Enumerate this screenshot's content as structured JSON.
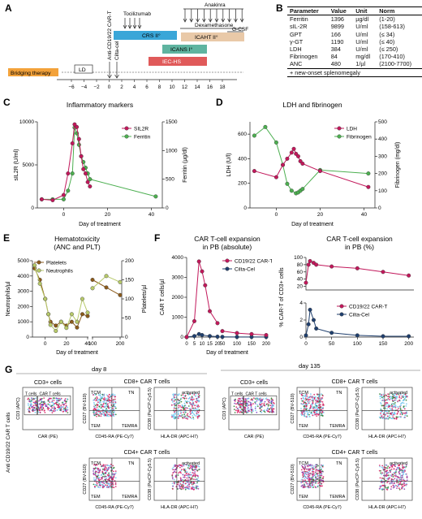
{
  "panels": {
    "A": "A",
    "B": "B",
    "C": "C",
    "D": "D",
    "E": "E",
    "F": "F",
    "G": "G"
  },
  "timeline": {
    "therapies": [
      "Anti-CD19/22 CAR-T",
      "Cilta-cel",
      "Tocilizumab",
      "Dexamethasone",
      "Anakinra",
      "G-CSF"
    ],
    "bars": [
      "Bridging therapy",
      "LD",
      "CRS II°",
      "ICANS I°",
      "ICAHT II°",
      "IEC-HS"
    ],
    "ticks": [
      "−6",
      "−4",
      "−2",
      "0",
      "2",
      "4",
      "6",
      "8",
      "10",
      "12",
      "14",
      "16",
      "18"
    ]
  },
  "table": {
    "headers": [
      "Parameter",
      "Value",
      "Unit",
      "Norm"
    ],
    "rows": [
      [
        "Ferritin",
        "1396",
        "µg/dl",
        "(1-20)"
      ],
      [
        "sIL-2R",
        "9899",
        "U/ml",
        "(158-613)"
      ],
      [
        "GPT",
        "166",
        "U/ml",
        "(≤ 34)"
      ],
      [
        "γ-GT",
        "1190",
        "U/ml",
        "(≤ 40)"
      ],
      [
        "LDH",
        "384",
        "U/ml",
        "(≤ 250)"
      ],
      [
        "Fibrinogen",
        "84",
        "mg/dl",
        "(170-410)"
      ],
      [
        "ANC",
        "480",
        "1/µl",
        "(2100-7700)"
      ]
    ],
    "note": "+ new-onset splenomegaly"
  },
  "panelC": {
    "title": "Inflammatory markers",
    "ylabel_left": "sIL2R (U/ml)",
    "ylabel_right": "Ferritin (µg/dl)",
    "xlabel": "Day of treatment",
    "yticks_left": [
      "0",
      "5000",
      "10000"
    ],
    "yticks_right": [
      "0",
      "500",
      "1000",
      "1500"
    ],
    "xticks": [
      "0",
      "20",
      "40"
    ],
    "legend": [
      "SIL2R",
      "Ferritin"
    ]
  },
  "panelD": {
    "title": "LDH and fibrinogen",
    "ylabel_left": "LDH (U/l)",
    "ylabel_right": "Fibrinogen (mg/dl)",
    "xlabel": "Day of treatment",
    "yticks_left": [
      "0",
      "200",
      "400",
      "600"
    ],
    "yticks_right": [
      "0",
      "100",
      "200",
      "300",
      "400",
      "500"
    ],
    "xticks": [
      "0",
      "20",
      "40"
    ],
    "legend": [
      "LDH",
      "Fibrinogen"
    ]
  },
  "panelE": {
    "title": "Hematotoxicity",
    "subtitle": "(ANC and PLT)",
    "ylabel_left": "Neutrophils/µl",
    "ylabel_right": "Platelets/µl",
    "xlabel": "Day of treatment",
    "yticks_left": [
      "0",
      "1000",
      "2000",
      "3000",
      "4000",
      "5000"
    ],
    "yticks_right": [
      "0",
      "50",
      "100",
      "150",
      "200"
    ],
    "xticks": [
      "0",
      "20",
      "40",
      "100",
      "200"
    ],
    "legend": [
      "Platelets",
      "Neutrophils"
    ]
  },
  "panelF1": {
    "title": "CAR T-cell expansion",
    "subtitle": "in PB (absolute)",
    "ylabel": "CAR T cells/µl",
    "xlabel": "Day of treatment",
    "yticks": [
      "0",
      "1000",
      "2000",
      "3000",
      "4000"
    ],
    "xticks": [
      "0",
      "5",
      "10",
      "15",
      "20",
      "50",
      "100",
      "150",
      "200"
    ],
    "legend": [
      "CD19/22 CAR-T",
      "Cilta-Cel"
    ]
  },
  "panelF2": {
    "title": "CAR T-cell expansion",
    "subtitle": "in PB (%)",
    "ylabel": "% CAR-T of CD3+ cells",
    "yticks_top": [
      "20",
      "40",
      "60",
      "80",
      "100"
    ],
    "yticks_bottom": [
      "0",
      "2",
      "4"
    ],
    "xticks": [
      "0",
      "50",
      "100",
      "150",
      "200"
    ],
    "legend": [
      "CD19/22 CAR-T",
      "Cilta-Cel"
    ]
  },
  "panelG": {
    "side_label": "Anti CD19/22 CAR T cells",
    "day8": "day 8",
    "day135": "day 135",
    "cd3_title": "CD3+ cells",
    "cd8_title": "CD8+ CAR T cells",
    "cd4_title": "CD4+ CAR T cells",
    "gate_tcells": "T cells",
    "gate_car": "CAR T cells",
    "labels": {
      "tcm": "TCM",
      "tn": "TN",
      "tem": "TEM",
      "temra": "TEMRA",
      "activated": "activated"
    },
    "axes": {
      "cd3": "CD3 (APC)",
      "car": "CAR (PE)",
      "cd27": "CD27 (BV-510)",
      "cd45ra": "CD45-RA (PE-Cy7)",
      "cd38": "CD38 (PerCP-Cy5.5)",
      "hladr": "HLA-DR (APC-H7)"
    }
  },
  "colors": {
    "cd1922": "#c2185b",
    "cilta": "#1f3f6e",
    "sil2r": "#c2185b",
    "ferritin": "#4caf50",
    "ldh": "#c2185b",
    "fibrinogen": "#4caf50",
    "platelets": "#8b5a1b",
    "neutrophils": "#b7c96a",
    "crs": "#3aa6d8",
    "icans": "#5fb4a0",
    "icaht": "#e9c9a8",
    "iechs": "#e05a5a",
    "bridging": "#f3a23a"
  },
  "chart_data": [
    {
      "type": "line",
      "title": "Inflammatory markers",
      "xlabel": "Day of treatment",
      "xlim": [
        -12,
        45
      ],
      "series": [
        {
          "name": "SIL2R",
          "axis": "left",
          "ylim": [
            0,
            10000
          ],
          "x": [
            -10,
            -5,
            0,
            2,
            4,
            5,
            6,
            7,
            8,
            9,
            10,
            11,
            12
          ],
          "values": [
            1000,
            900,
            1500,
            4000,
            7500,
            9700,
            9400,
            8000,
            6000,
            4500,
            4000,
            3000,
            2500
          ]
        },
        {
          "name": "Ferritin",
          "axis": "right",
          "ylim": [
            0,
            1500
          ],
          "x": [
            -10,
            -5,
            0,
            2,
            4,
            5,
            6,
            7,
            8,
            9,
            10,
            11,
            12,
            42
          ],
          "values": [
            150,
            150,
            150,
            300,
            600,
            1400,
            1300,
            1100,
            900,
            800,
            700,
            600,
            500,
            200
          ]
        }
      ]
    },
    {
      "type": "line",
      "title": "LDH and fibrinogen",
      "xlabel": "Day of treatment",
      "xlim": [
        -12,
        45
      ],
      "series": [
        {
          "name": "LDH",
          "axis": "left",
          "ylim": [
            0,
            700
          ],
          "x": [
            -10,
            0,
            3,
            5,
            7,
            8,
            9,
            10,
            11,
            12,
            20,
            42
          ],
          "values": [
            300,
            250,
            350,
            400,
            450,
            480,
            440,
            420,
            380,
            360,
            300,
            170
          ]
        },
        {
          "name": "Fibrinogen",
          "axis": "right",
          "ylim": [
            0,
            500
          ],
          "x": [
            -10,
            -5,
            0,
            3,
            5,
            7,
            9,
            10,
            11,
            12,
            20,
            42
          ],
          "values": [
            420,
            470,
            380,
            250,
            140,
            100,
            85,
            90,
            100,
            110,
            220,
            200
          ]
        }
      ]
    },
    {
      "type": "line",
      "title": "Hematotoxicity",
      "xlabel": "Day of treatment",
      "series": [
        {
          "name": "Platelets",
          "axis": "right",
          "ylim": [
            0,
            200
          ],
          "x": [
            -10,
            -5,
            0,
            3,
            5,
            10,
            15,
            20,
            25,
            30,
            35,
            40,
            100,
            150,
            200
          ],
          "values": [
            180,
            150,
            100,
            60,
            40,
            30,
            40,
            30,
            40,
            25,
            60,
            55,
            150,
            130,
            110
          ]
        },
        {
          "name": "Neutrophils",
          "axis": "left",
          "ylim": [
            0,
            5000
          ],
          "x": [
            -10,
            -5,
            0,
            3,
            5,
            10,
            15,
            20,
            25,
            30,
            35,
            40,
            100,
            150,
            200
          ],
          "values": [
            4700,
            3500,
            2500,
            1500,
            800,
            400,
            1000,
            600,
            1500,
            1000,
            2500,
            1600,
            3200,
            4000,
            3600
          ]
        }
      ]
    },
    {
      "type": "line",
      "title": "CAR T-cell expansion in PB (absolute)",
      "xlabel": "Day of treatment",
      "ylabel": "CAR T cells/µl",
      "ylim": [
        0,
        4000
      ],
      "series": [
        {
          "name": "CD19/22 CAR-T",
          "x": [
            0,
            5,
            8,
            10,
            12,
            15,
            20,
            50,
            100,
            150,
            200
          ],
          "values": [
            0,
            800,
            3800,
            3300,
            2600,
            1300,
            700,
            300,
            200,
            150,
            100
          ]
        },
        {
          "name": "Cilta-Cel",
          "x": [
            0,
            5,
            8,
            10,
            15,
            20,
            50,
            100,
            150,
            200
          ],
          "values": [
            0,
            50,
            150,
            100,
            50,
            20,
            10,
            5,
            5,
            5
          ]
        }
      ]
    },
    {
      "type": "line",
      "title": "CAR T-cell expansion in PB (%)",
      "ylabel": "% CAR-T of CD3+ cells",
      "series": [
        {
          "name": "CD19/22 CAR-T",
          "x": [
            0,
            5,
            8,
            15,
            20,
            50,
            100,
            150,
            200
          ],
          "values": [
            30,
            80,
            90,
            85,
            80,
            75,
            70,
            60,
            50
          ]
        },
        {
          "name": "Cilta-Cel",
          "x": [
            0,
            5,
            8,
            15,
            20,
            50,
            100,
            150,
            200
          ],
          "values": [
            0.2,
            1.5,
            3.2,
            2.0,
            1.0,
            0.5,
            0.2,
            0.1,
            0.1
          ]
        }
      ]
    }
  ]
}
